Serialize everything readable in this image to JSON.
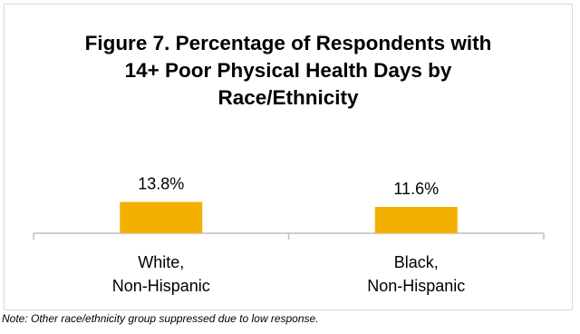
{
  "chart_data": {
    "type": "bar",
    "title_lines": [
      "Figure 7. Percentage of Respondents with",
      "14+ Poor Physical Health Days by",
      "Race/Ethnicity"
    ],
    "categories": [
      [
        "White,",
        "Non-Hispanic"
      ],
      [
        "Black,",
        "Non-Hispanic"
      ]
    ],
    "values": [
      13.8,
      11.6
    ],
    "data_labels": [
      "13.8%",
      "11.6%"
    ],
    "unit": "%",
    "ylim": [
      0,
      100
    ],
    "grid": false,
    "legend": "none",
    "bar_color": "#F4B000",
    "axis_color": "#bfbfbf"
  },
  "note": "Note: Other race/ethnicity group suppressed due to low response."
}
